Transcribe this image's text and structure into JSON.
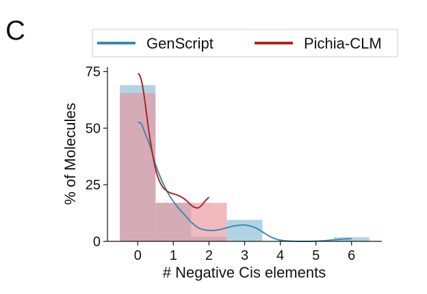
{
  "panel_label": "C",
  "chart_data": {
    "type": "bar",
    "xlabel": "# Negative Cis elements",
    "ylabel": "% of Molecules",
    "xlim": [
      -0.85,
      6.85
    ],
    "ylim": [
      0,
      77
    ],
    "xticks": [
      "0",
      "1",
      "2",
      "3",
      "4",
      "5",
      "6"
    ],
    "yticks": [
      "0",
      "25",
      "50",
      "75"
    ],
    "legend_position": "top",
    "grid": false,
    "series": [
      {
        "name": "GenScript",
        "color": "#3b8bb0",
        "fill": "#a9cfe1",
        "bars": [
          {
            "x0": -0.5,
            "x1": 0.5,
            "value": 69
          },
          {
            "x0": 0.5,
            "x1": 1.5,
            "value": 17
          },
          {
            "x0": 1.5,
            "x1": 2.5,
            "value": 2
          },
          {
            "x0": 2.5,
            "x1": 3.5,
            "value": 9.5
          },
          {
            "x0": 5.5,
            "x1": 6.5,
            "value": 1.8
          }
        ],
        "kde": [
          [
            0,
            52.5
          ],
          [
            0.1,
            52
          ],
          [
            0.2,
            48
          ],
          [
            0.35,
            42
          ],
          [
            0.5,
            34
          ],
          [
            0.7,
            26
          ],
          [
            0.9,
            20
          ],
          [
            1.1,
            15.5
          ],
          [
            1.3,
            12
          ],
          [
            1.5,
            8.5
          ],
          [
            1.7,
            6
          ],
          [
            1.9,
            5
          ],
          [
            2.1,
            4.8
          ],
          [
            2.3,
            5.2
          ],
          [
            2.5,
            6
          ],
          [
            2.7,
            6.8
          ],
          [
            2.9,
            7.2
          ],
          [
            3.1,
            7
          ],
          [
            3.3,
            6
          ],
          [
            3.5,
            4.2
          ],
          [
            3.7,
            2.2
          ],
          [
            3.9,
            0.9
          ],
          [
            4.1,
            0.3
          ],
          [
            4.3,
            0.1
          ],
          [
            4.7,
            0
          ],
          [
            5.0,
            0.1
          ],
          [
            5.3,
            0.4
          ],
          [
            5.6,
            0.8
          ],
          [
            5.85,
            1.1
          ],
          [
            6.0,
            1.2
          ]
        ]
      },
      {
        "name": "Pichia-CLM",
        "color": "#b22222",
        "fill": "#e8959b",
        "bars": [
          {
            "x0": -0.5,
            "x1": 0.5,
            "value": 65.5
          },
          {
            "x0": 0.5,
            "x1": 1.5,
            "value": 17
          },
          {
            "x0": 1.5,
            "x1": 2.5,
            "value": 17
          }
        ],
        "kde": [
          [
            0,
            74
          ],
          [
            0.05,
            73.5
          ],
          [
            0.12,
            70
          ],
          [
            0.2,
            62
          ],
          [
            0.3,
            50
          ],
          [
            0.4,
            40
          ],
          [
            0.5,
            32
          ],
          [
            0.6,
            27
          ],
          [
            0.7,
            24
          ],
          [
            0.8,
            22.5
          ],
          [
            0.9,
            21.5
          ],
          [
            1.0,
            21
          ],
          [
            1.1,
            20.5
          ],
          [
            1.2,
            19.8
          ],
          [
            1.3,
            18.8
          ],
          [
            1.4,
            17.5
          ],
          [
            1.5,
            16
          ],
          [
            1.6,
            15
          ],
          [
            1.7,
            14.8
          ],
          [
            1.8,
            16
          ],
          [
            1.9,
            18
          ],
          [
            2.0,
            19.5
          ]
        ]
      }
    ]
  }
}
